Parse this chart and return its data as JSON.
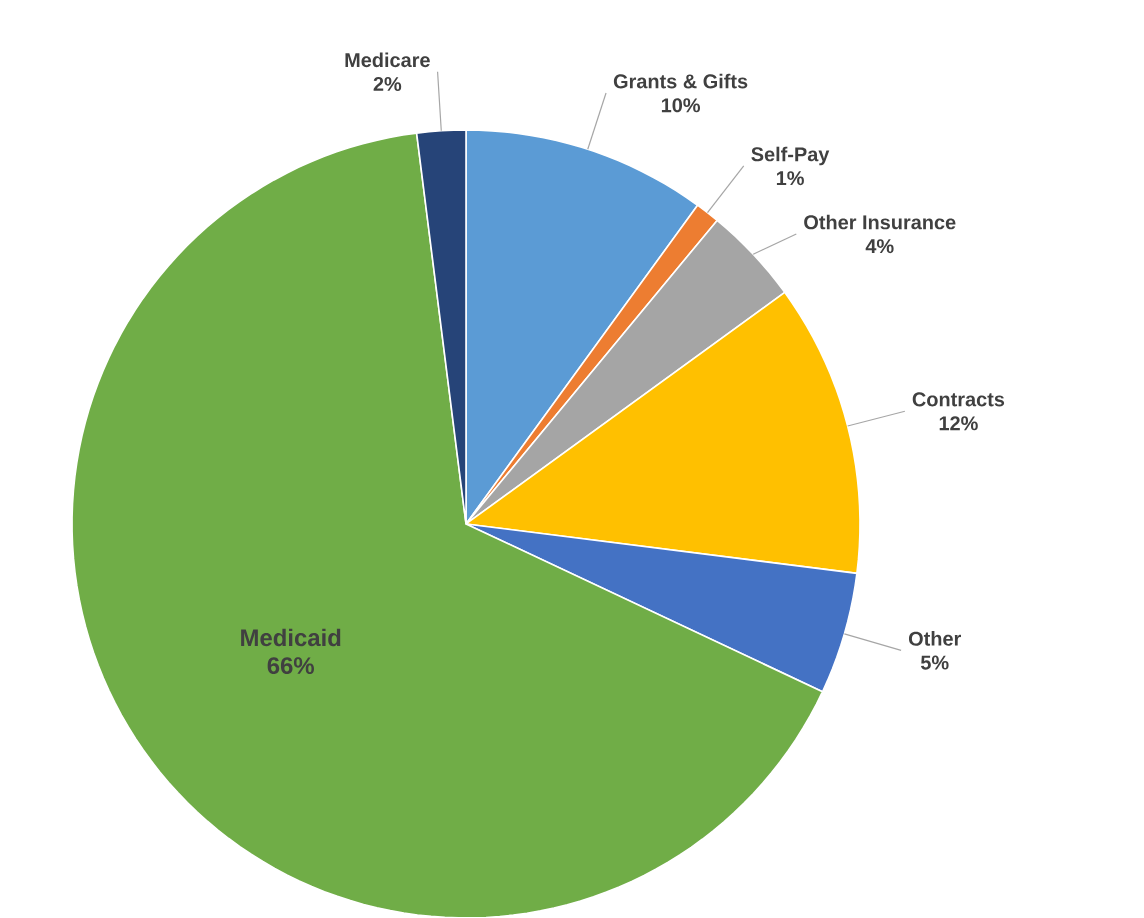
{
  "chart_data": {
    "type": "pie",
    "categories": [
      "Grants & Gifts",
      "Self-Pay",
      "Other Insurance",
      "Contracts",
      "Other",
      "Medicaid",
      "Medicare"
    ],
    "values": [
      10,
      1,
      4,
      12,
      5,
      66,
      2
    ],
    "value_labels": [
      "10%",
      "1%",
      "4%",
      "12%",
      "5%",
      "66%",
      "2%"
    ],
    "colors": [
      "#5b9bd5",
      "#ed7d31",
      "#a5a5a5",
      "#ffc000",
      "#4472c4",
      "#70ad47",
      "#264478"
    ]
  }
}
